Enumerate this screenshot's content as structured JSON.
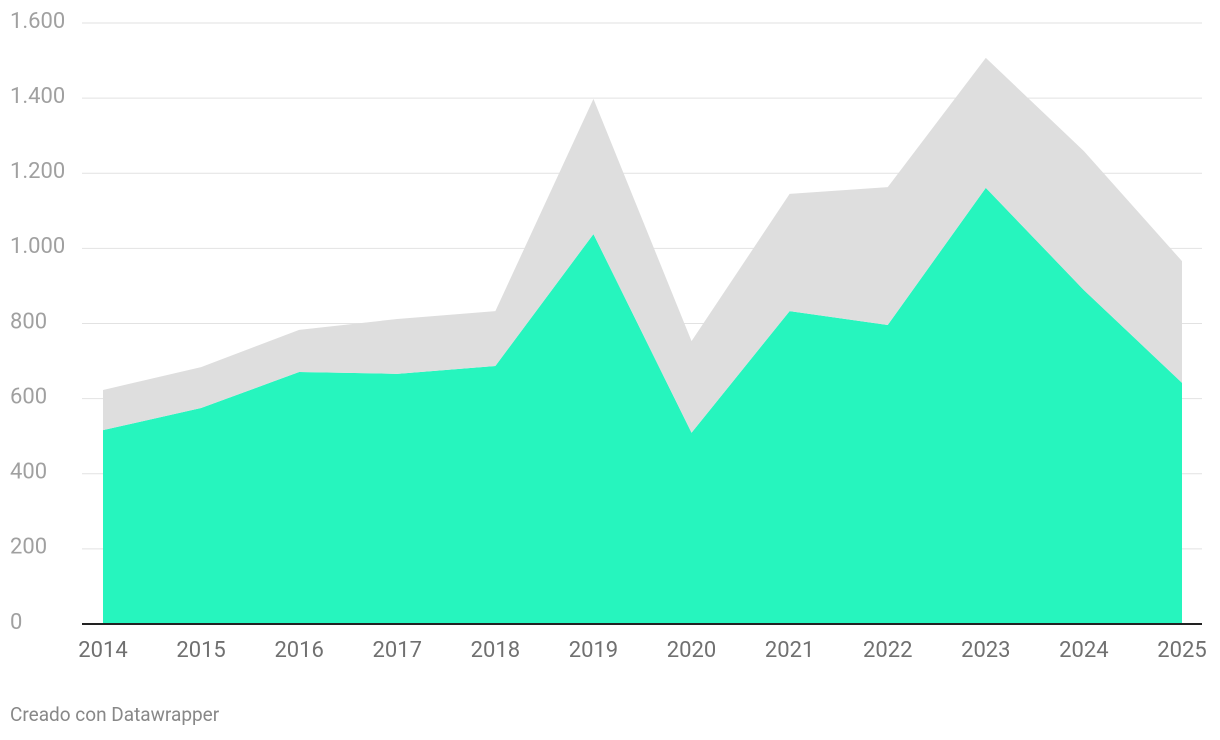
{
  "chart_data": {
    "type": "stacked_area",
    "categories": [
      "2014",
      "2015",
      "2016",
      "2017",
      "2018",
      "2019",
      "2020",
      "2021",
      "2022",
      "2023",
      "2024",
      "2025"
    ],
    "series": [
      {
        "color": "#26f5be",
        "values": [
          516,
          575,
          671,
          666,
          687,
          1038,
          509,
          833,
          796,
          1161,
          889,
          642
        ]
      },
      {
        "color": "#dedede",
        "values": [
          107,
          109,
          112,
          146,
          146,
          360,
          244,
          312,
          367,
          346,
          370,
          324
        ]
      }
    ],
    "ylim": [
      0,
      1600
    ],
    "yticks": [
      0,
      200,
      400,
      600,
      800,
      {
        "value": 1000,
        "label": "1.000"
      },
      {
        "value": 1200,
        "label": "1.200"
      },
      {
        "value": 1400,
        "label": "1.400"
      },
      {
        "value": 1600,
        "label": "1.600"
      }
    ],
    "grid": true,
    "footer": "Creado con Datawrapper"
  }
}
